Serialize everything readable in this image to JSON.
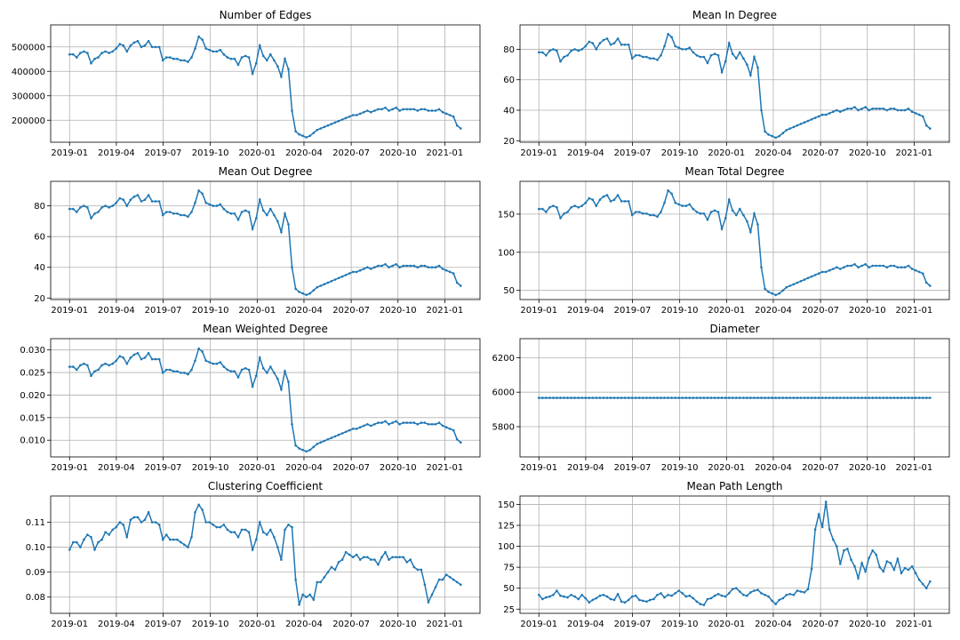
{
  "figure": {
    "line_color": "#1f77b4",
    "grid": true
  },
  "x_tick_labels": [
    "2019-01",
    "2019-04",
    "2019-07",
    "2019-10",
    "2020-01",
    "2020-04",
    "2020-07",
    "2020-10",
    "2021-01"
  ],
  "chart_data": [
    {
      "type": "line",
      "title": "Number of Edges",
      "x_ticks": [
        "2019-01",
        "2019-04",
        "2019-07",
        "2019-10",
        "2020-01",
        "2020-04",
        "2020-07",
        "2020-10",
        "2021-01"
      ],
      "y_ticks": [
        "200000",
        "300000",
        "400000",
        "500000"
      ],
      "ylim": [
        110000,
        590000
      ],
      "y_range": [
        425000,
        560000,
        150000,
        245000
      ],
      "grid": true
    },
    {
      "type": "line",
      "title": "Mean In Degree",
      "x_ticks": [
        "2019-01",
        "2019-04",
        "2019-07",
        "2019-10",
        "2020-01",
        "2020-04",
        "2020-07",
        "2020-10",
        "2021-01"
      ],
      "y_ticks": [
        "20",
        "40",
        "60",
        "80"
      ],
      "ylim": [
        19,
        96
      ],
      "grid": true
    },
    {
      "type": "line",
      "title": "Mean Out Degree",
      "x_ticks": [
        "2019-01",
        "2019-04",
        "2019-07",
        "2019-10",
        "2020-01",
        "2020-04",
        "2020-07",
        "2020-10",
        "2021-01"
      ],
      "y_ticks": [
        "20",
        "40",
        "60",
        "80"
      ],
      "ylim": [
        19,
        96
      ],
      "grid": true
    },
    {
      "type": "line",
      "title": "Mean Total Degree",
      "x_ticks": [
        "2019-01",
        "2019-04",
        "2019-07",
        "2019-10",
        "2020-01",
        "2020-04",
        "2020-07",
        "2020-10",
        "2021-01"
      ],
      "y_ticks": [
        "50",
        "100",
        "150"
      ],
      "ylim": [
        38,
        193
      ],
      "grid": true
    },
    {
      "type": "line",
      "title": "Mean Weighted Degree",
      "x_ticks": [
        "2019-01",
        "2019-04",
        "2019-07",
        "2019-10",
        "2020-01",
        "2020-04",
        "2020-07",
        "2020-10",
        "2021-01"
      ],
      "y_ticks": [
        "0.010",
        "0.015",
        "0.020",
        "0.025",
        "0.030"
      ],
      "ylim": [
        0.0063,
        0.0325
      ],
      "grid": true
    },
    {
      "type": "line",
      "title": "Diameter",
      "x_ticks": [
        "2019-01",
        "2019-04",
        "2019-07",
        "2019-10",
        "2020-01",
        "2020-04",
        "2020-07",
        "2020-10",
        "2021-01"
      ],
      "y_ticks": [
        "5800",
        "6000",
        "6200"
      ],
      "ylim": [
        5625,
        6310
      ],
      "constant_value": 5967,
      "grid": true
    },
    {
      "type": "line",
      "title": "Clustering Coefficient",
      "x_ticks": [
        "2019-01",
        "2019-04",
        "2019-07",
        "2019-10",
        "2020-01",
        "2020-04",
        "2020-07",
        "2020-10",
        "2021-01"
      ],
      "y_ticks": [
        "0.08",
        "0.09",
        "0.10",
        "0.11"
      ],
      "ylim": [
        0.0735,
        0.1205
      ],
      "grid": true
    },
    {
      "type": "line",
      "title": "Mean Path Length",
      "x_ticks": [
        "2019-01",
        "2019-04",
        "2019-07",
        "2019-10",
        "2020-01",
        "2020-04",
        "2020-07",
        "2020-10",
        "2021-01"
      ],
      "y_ticks": [
        "25",
        "50",
        "75",
        "100",
        "125",
        "150"
      ],
      "ylim": [
        20,
        160
      ],
      "grid": true
    }
  ]
}
